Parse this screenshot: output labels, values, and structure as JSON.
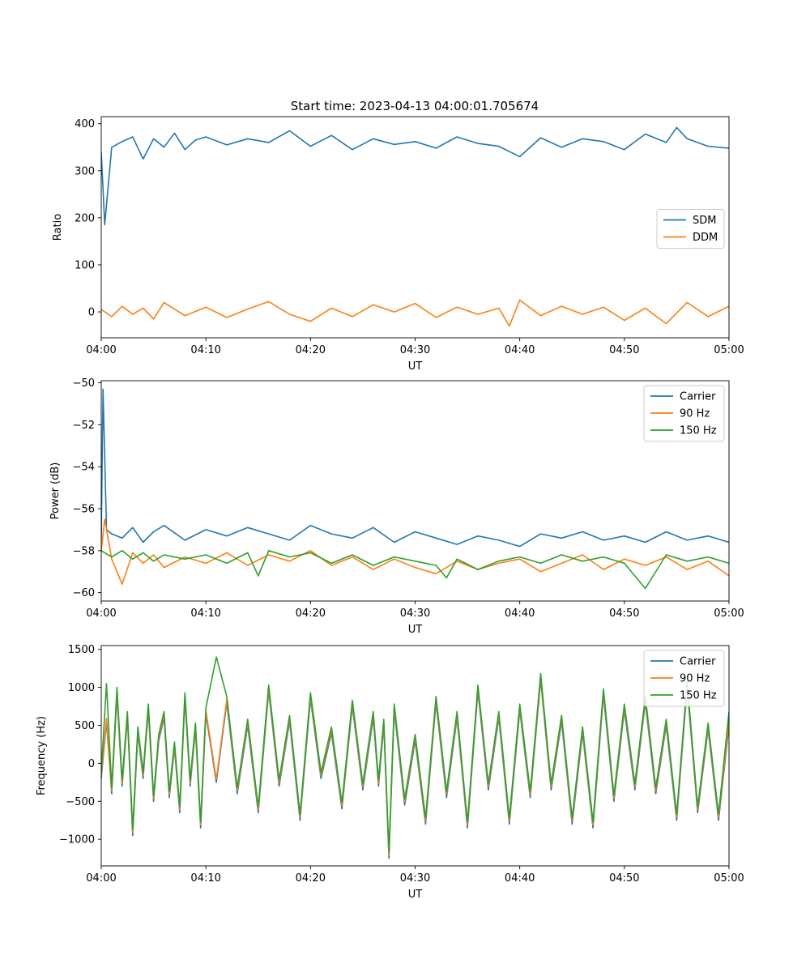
{
  "figure": {
    "title": "Start time: 2023-04-13 04:00:01.705674"
  },
  "colors": {
    "blue": "#1f77b4",
    "orange": "#ff7f0e",
    "green": "#2ca02c"
  },
  "chart_data": [
    {
      "type": "line",
      "title": "Start time: 2023-04-13 04:00:01.705674",
      "xlabel": "UT",
      "ylabel": "Ratio",
      "xlim": [
        "04:00",
        "05:00"
      ],
      "xticks": [
        "04:00",
        "04:10",
        "04:20",
        "04:30",
        "04:40",
        "04:50",
        "05:00"
      ],
      "ylim": [
        -55,
        415
      ],
      "yticks": [
        0,
        100,
        200,
        300,
        400
      ],
      "legend": "center-right",
      "grid": false,
      "series": [
        {
          "name": "SDM",
          "color": "#1f77b4",
          "x": [
            "04:00",
            "04:00:20",
            "04:01",
            "04:02",
            "04:03",
            "04:04",
            "04:05",
            "04:06",
            "04:07",
            "04:08",
            "04:09",
            "04:10",
            "04:12",
            "04:14",
            "04:16",
            "04:18",
            "04:20",
            "04:22",
            "04:24",
            "04:26",
            "04:28",
            "04:30",
            "04:32",
            "04:34",
            "04:36",
            "04:38",
            "04:40",
            "04:42",
            "04:44",
            "04:46",
            "04:48",
            "04:50",
            "04:52",
            "04:54",
            "04:55",
            "04:56",
            "04:58",
            "05:00"
          ],
          "y": [
            340,
            185,
            350,
            362,
            372,
            325,
            368,
            350,
            380,
            345,
            365,
            372,
            355,
            368,
            360,
            385,
            352,
            375,
            345,
            368,
            356,
            362,
            348,
            372,
            358,
            352,
            330,
            370,
            350,
            368,
            362,
            345,
            378,
            360,
            392,
            368,
            352,
            348
          ]
        },
        {
          "name": "DDM",
          "color": "#ff7f0e",
          "x": [
            "04:00",
            "04:01",
            "04:02",
            "04:03",
            "04:04",
            "04:05",
            "04:06",
            "04:08",
            "04:10",
            "04:12",
            "04:14",
            "04:16",
            "04:18",
            "04:20",
            "04:22",
            "04:24",
            "04:26",
            "04:28",
            "04:30",
            "04:32",
            "04:34",
            "04:36",
            "04:38",
            "04:39",
            "04:40",
            "04:42",
            "04:44",
            "04:46",
            "04:48",
            "04:50",
            "04:52",
            "04:54",
            "04:56",
            "04:58",
            "05:00"
          ],
          "y": [
            5,
            -10,
            12,
            -5,
            8,
            -15,
            20,
            -8,
            10,
            -12,
            6,
            22,
            -5,
            -20,
            8,
            -10,
            15,
            0,
            18,
            -12,
            10,
            -5,
            8,
            -30,
            25,
            -8,
            12,
            -5,
            10,
            -18,
            8,
            -25,
            20,
            -10,
            12
          ]
        }
      ]
    },
    {
      "type": "line",
      "title": "",
      "xlabel": "UT",
      "ylabel": "Power (dB)",
      "xlim": [
        "04:00",
        "05:00"
      ],
      "xticks": [
        "04:00",
        "04:10",
        "04:20",
        "04:30",
        "04:40",
        "04:50",
        "05:00"
      ],
      "ylim": [
        -60.4,
        -49.9
      ],
      "yticks": [
        -60,
        -58,
        -56,
        -54,
        -52,
        -50
      ],
      "legend": "top-right",
      "grid": false,
      "series": [
        {
          "name": "Carrier",
          "color": "#1f77b4",
          "x": [
            "04:00",
            "04:00:10",
            "04:00:30",
            "04:01",
            "04:02",
            "04:03",
            "04:04",
            "04:05",
            "04:06",
            "04:08",
            "04:10",
            "04:12",
            "04:14",
            "04:16",
            "04:18",
            "04:20",
            "04:22",
            "04:24",
            "04:26",
            "04:28",
            "04:30",
            "04:32",
            "04:34",
            "04:36",
            "04:38",
            "04:40",
            "04:42",
            "04:44",
            "04:46",
            "04:48",
            "04:50",
            "04:52",
            "04:54",
            "04:56",
            "04:58",
            "05:00"
          ],
          "y": [
            -57.5,
            -50.3,
            -57.0,
            -57.2,
            -57.4,
            -56.9,
            -57.6,
            -57.1,
            -56.8,
            -57.5,
            -57.0,
            -57.3,
            -56.9,
            -57.2,
            -57.5,
            -56.8,
            -57.2,
            -57.4,
            -56.9,
            -57.6,
            -57.1,
            -57.4,
            -57.7,
            -57.3,
            -57.5,
            -57.8,
            -57.2,
            -57.4,
            -57.1,
            -57.5,
            -57.3,
            -57.6,
            -57.1,
            -57.5,
            -57.3,
            -57.6
          ]
        },
        {
          "name": "90 Hz",
          "color": "#ff7f0e",
          "x": [
            "04:00",
            "04:00:20",
            "04:01",
            "04:02",
            "04:03",
            "04:04",
            "04:05",
            "04:06",
            "04:08",
            "04:10",
            "04:12",
            "04:14",
            "04:16",
            "04:18",
            "04:20",
            "04:22",
            "04:24",
            "04:26",
            "04:28",
            "04:30",
            "04:32",
            "04:34",
            "04:36",
            "04:38",
            "04:40",
            "04:42",
            "04:44",
            "04:46",
            "04:48",
            "04:50",
            "04:52",
            "04:54",
            "04:56",
            "04:58",
            "05:00"
          ],
          "y": [
            -58.0,
            -56.5,
            -58.4,
            -59.6,
            -58.1,
            -58.6,
            -58.2,
            -58.8,
            -58.3,
            -58.6,
            -58.1,
            -58.7,
            -58.2,
            -58.5,
            -58.0,
            -58.7,
            -58.3,
            -58.9,
            -58.4,
            -58.8,
            -59.1,
            -58.5,
            -58.9,
            -58.6,
            -58.4,
            -59.0,
            -58.6,
            -58.2,
            -58.9,
            -58.4,
            -58.7,
            -58.3,
            -58.9,
            -58.5,
            -59.2
          ]
        },
        {
          "name": "150 Hz",
          "color": "#2ca02c",
          "x": [
            "04:00",
            "04:01",
            "04:02",
            "04:03",
            "04:04",
            "04:05",
            "04:06",
            "04:08",
            "04:10",
            "04:12",
            "04:14",
            "04:15",
            "04:16",
            "04:18",
            "04:20",
            "04:22",
            "04:24",
            "04:26",
            "04:28",
            "04:30",
            "04:32",
            "04:33",
            "04:34",
            "04:36",
            "04:38",
            "04:40",
            "04:42",
            "04:44",
            "04:46",
            "04:48",
            "04:50",
            "04:52",
            "04:54",
            "04:56",
            "04:58",
            "05:00"
          ],
          "y": [
            -58.0,
            -58.3,
            -58.0,
            -58.4,
            -58.1,
            -58.5,
            -58.2,
            -58.4,
            -58.2,
            -58.6,
            -58.1,
            -59.2,
            -58.0,
            -58.3,
            -58.1,
            -58.6,
            -58.2,
            -58.7,
            -58.3,
            -58.5,
            -58.7,
            -59.3,
            -58.4,
            -58.9,
            -58.5,
            -58.3,
            -58.6,
            -58.2,
            -58.5,
            -58.3,
            -58.6,
            -59.8,
            -58.2,
            -58.5,
            -58.3,
            -58.6
          ]
        }
      ]
    },
    {
      "type": "line",
      "title": "",
      "xlabel": "UT",
      "ylabel": "Frequency (Hz)",
      "xlim": [
        "04:00",
        "05:00"
      ],
      "xticks": [
        "04:00",
        "04:10",
        "04:20",
        "04:30",
        "04:40",
        "04:50",
        "05:00"
      ],
      "ylim": [
        -1350,
        1550
      ],
      "yticks": [
        -1000,
        -500,
        0,
        500,
        1000,
        1500
      ],
      "legend": "top-right",
      "grid": false,
      "series": [
        {
          "name": "Carrier",
          "color": "#1f77b4",
          "x": [
            "04:00",
            "04:00:30",
            "04:01",
            "04:01:30",
            "04:02",
            "04:02:30",
            "04:03",
            "04:03:30",
            "04:04",
            "04:04:30",
            "04:05",
            "04:05:30",
            "04:06",
            "04:06:30",
            "04:07",
            "04:07:30",
            "04:08",
            "04:08:30",
            "04:09",
            "04:09:30",
            "04:10",
            "04:11",
            "04:12",
            "04:13",
            "04:14",
            "04:15",
            "04:16",
            "04:17",
            "04:18",
            "04:19",
            "04:20",
            "04:21",
            "04:22",
            "04:23",
            "04:24",
            "04:25",
            "04:26",
            "04:26:30",
            "04:27",
            "04:27:30",
            "04:28",
            "04:29",
            "04:30",
            "04:31",
            "04:32",
            "04:33",
            "04:34",
            "04:35",
            "04:36",
            "04:37",
            "04:38",
            "04:39",
            "04:40",
            "04:41",
            "04:42",
            "04:43",
            "04:44",
            "04:45",
            "04:46",
            "04:47",
            "04:48",
            "04:49",
            "04:50",
            "04:51",
            "04:52",
            "04:53",
            "04:54",
            "04:55",
            "04:56",
            "04:57",
            "04:58",
            "04:59",
            "05:00"
          ],
          "y": [
            -200,
            550,
            -400,
            900,
            -300,
            600,
            -950,
            400,
            -200,
            700,
            -500,
            300,
            600,
            -450,
            200,
            -650,
            850,
            -300,
            450,
            -850,
            650,
            -250,
            800,
            -400,
            500,
            -650,
            950,
            -300,
            550,
            -750,
            850,
            -200,
            400,
            -600,
            750,
            -350,
            600,
            -300,
            500,
            -1250,
            700,
            -550,
            300,
            -800,
            800,
            -450,
            600,
            -850,
            950,
            -350,
            600,
            -800,
            700,
            -450,
            1100,
            -350,
            550,
            -800,
            400,
            -850,
            900,
            -500,
            700,
            -350,
            800,
            -400,
            500,
            -750,
            1000,
            -650,
            450,
            -750,
            500
          ]
        },
        {
          "name": "90 Hz",
          "color": "#ff7f0e",
          "x": [
            "04:00",
            "04:00:30",
            "04:01",
            "04:01:30",
            "04:02",
            "04:02:30",
            "04:03",
            "04:03:30",
            "04:04",
            "04:04:30",
            "04:05",
            "04:05:30",
            "04:06",
            "04:06:30",
            "04:07",
            "04:07:30",
            "04:08",
            "04:08:30",
            "04:09",
            "04:09:30",
            "04:10",
            "04:11",
            "04:12",
            "04:13",
            "04:14",
            "04:15",
            "04:16",
            "04:17",
            "04:18",
            "04:19",
            "04:20",
            "04:21",
            "04:22",
            "04:23",
            "04:24",
            "04:25",
            "04:26",
            "04:26:30",
            "04:27",
            "04:27:30",
            "04:28",
            "04:29",
            "04:30",
            "04:31",
            "04:32",
            "04:33",
            "04:34",
            "04:35",
            "04:36",
            "04:37",
            "04:38",
            "04:39",
            "04:40",
            "04:41",
            "04:42",
            "04:43",
            "04:44",
            "04:45",
            "04:46",
            "04:47",
            "04:48",
            "04:49",
            "04:50",
            "04:51",
            "04:52",
            "04:53",
            "04:54",
            "04:55",
            "04:56",
            "04:57",
            "04:58",
            "04:59",
            "05:00"
          ],
          "y": [
            -160,
            590,
            -360,
            940,
            -260,
            640,
            -910,
            440,
            -160,
            740,
            -460,
            340,
            640,
            -410,
            240,
            -610,
            890,
            -260,
            490,
            -810,
            690,
            -210,
            840,
            -360,
            540,
            -610,
            990,
            -260,
            590,
            -710,
            890,
            -160,
            440,
            -560,
            790,
            -310,
            640,
            -260,
            540,
            -1210,
            740,
            -510,
            340,
            -760,
            840,
            -410,
            640,
            -810,
            990,
            -310,
            640,
            -760,
            740,
            -410,
            1140,
            -310,
            590,
            -760,
            440,
            -810,
            940,
            -460,
            740,
            -310,
            840,
            -360,
            540,
            -710,
            1040,
            -610,
            490,
            -710,
            540
          ]
        },
        {
          "name": "150 Hz",
          "color": "#2ca02c",
          "x": [
            "04:00",
            "04:00:30",
            "04:01",
            "04:01:30",
            "04:02",
            "04:02:30",
            "04:03",
            "04:03:30",
            "04:04",
            "04:04:30",
            "04:05",
            "04:05:30",
            "04:06",
            "04:06:30",
            "04:07",
            "04:07:30",
            "04:08",
            "04:08:30",
            "04:09",
            "04:09:30",
            "04:10",
            "04:11",
            "04:12",
            "04:13",
            "04:14",
            "04:15",
            "04:16",
            "04:17",
            "04:18",
            "04:19",
            "04:20",
            "04:21",
            "04:22",
            "04:23",
            "04:24",
            "04:25",
            "04:26",
            "04:26:30",
            "04:27",
            "04:27:30",
            "04:28",
            "04:29",
            "04:30",
            "04:31",
            "04:32",
            "04:33",
            "04:34",
            "04:35",
            "04:36",
            "04:37",
            "04:38",
            "04:39",
            "04:40",
            "04:41",
            "04:42",
            "04:43",
            "04:44",
            "04:45",
            "04:46",
            "04:47",
            "04:48",
            "04:49",
            "04:50",
            "04:51",
            "04:52",
            "04:53",
            "04:54",
            "04:55",
            "04:56",
            "04:57",
            "04:58",
            "04:59",
            "05:00"
          ],
          "y": [
            -120,
            1050,
            -320,
            1000,
            -220,
            680,
            -870,
            480,
            -120,
            780,
            -420,
            380,
            680,
            -370,
            280,
            -570,
            930,
            -220,
            530,
            -770,
            730,
            1400,
            880,
            -320,
            580,
            -570,
            1030,
            -220,
            630,
            -670,
            930,
            -120,
            480,
            -520,
            830,
            -270,
            680,
            -220,
            580,
            -1170,
            780,
            -470,
            380,
            -720,
            880,
            -370,
            680,
            -770,
            1030,
            -270,
            680,
            -720,
            780,
            -370,
            1180,
            -270,
            630,
            -720,
            480,
            -770,
            980,
            -420,
            780,
            -270,
            880,
            -320,
            580,
            -670,
            1080,
            -570,
            530,
            -670,
            680
          ]
        }
      ]
    }
  ]
}
